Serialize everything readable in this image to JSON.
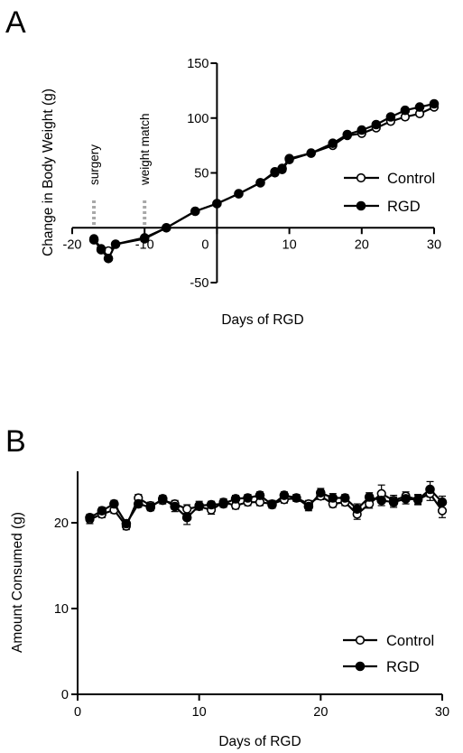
{
  "chart_data": [
    {
      "panel": "A",
      "type": "line",
      "title": "",
      "xlabel": "Days of RGD",
      "ylabel": "Change in Body Weight (g)",
      "xlim": [
        -20,
        30
      ],
      "ylim": [
        -50,
        150
      ],
      "xticks": [
        -20,
        -10,
        0,
        10,
        20,
        30
      ],
      "yticks": [
        -50,
        50,
        100,
        150
      ],
      "xtick_labels": [
        "-20",
        "-10",
        "",
        "10",
        "20",
        "30"
      ],
      "ytick_labels": [
        "-50",
        "50",
        "100",
        "150"
      ],
      "origin_label": "0",
      "annotations": [
        {
          "text": "surgery",
          "x": -17
        },
        {
          "text": "weight match",
          "x": -10
        }
      ],
      "legend": {
        "placement": "right",
        "entries": [
          "Control",
          "RGD"
        ]
      },
      "series": [
        {
          "name": "Control",
          "marker": "open-circle",
          "x": [
            -17,
            -16,
            -15,
            -14,
            -10,
            -7,
            -3,
            0,
            3,
            6,
            8,
            9,
            10,
            13,
            16,
            18,
            20,
            22,
            24,
            26,
            28,
            30
          ],
          "y": [
            -10,
            -19,
            -21,
            -15,
            -9,
            0,
            15,
            22,
            31,
            41,
            50,
            53,
            62,
            68,
            75,
            84,
            86,
            91,
            97,
            101,
            104,
            110
          ]
        },
        {
          "name": "RGD",
          "marker": "filled-circle",
          "x": [
            -17,
            -16,
            -15,
            -14,
            -10,
            -7,
            -3,
            0,
            3,
            6,
            8,
            9,
            10,
            13,
            16,
            18,
            20,
            22,
            24,
            26,
            28,
            30
          ],
          "y": [
            -11,
            -20,
            -28,
            -15,
            -10,
            0,
            15,
            22,
            31,
            41,
            51,
            54,
            63,
            68,
            77,
            85,
            89,
            94,
            101,
            107,
            110,
            113
          ]
        }
      ]
    },
    {
      "panel": "B",
      "type": "line",
      "title": "",
      "xlabel": "Days of RGD",
      "ylabel": "Amount Consumed (g)",
      "xlim": [
        0,
        30
      ],
      "ylim": [
        0,
        26
      ],
      "xticks": [
        0,
        10,
        20,
        30
      ],
      "yticks": [
        0,
        10,
        20
      ],
      "xtick_labels": [
        "0",
        "10",
        "20",
        "30"
      ],
      "ytick_labels": [
        "0",
        "10",
        "20"
      ],
      "legend": {
        "placement": "bottom-right",
        "entries": [
          "Control",
          "RGD"
        ]
      },
      "series": [
        {
          "name": "Control",
          "marker": "open-circle",
          "x": [
            1,
            2,
            3,
            4,
            5,
            6,
            7,
            8,
            9,
            10,
            11,
            12,
            13,
            14,
            15,
            16,
            17,
            18,
            19,
            20,
            21,
            22,
            23,
            24,
            25,
            26,
            27,
            28,
            29,
            30
          ],
          "y": [
            20.4,
            21.0,
            21.5,
            19.6,
            22.9,
            22.0,
            22.6,
            22.2,
            21.6,
            21.9,
            21.5,
            22.4,
            22.0,
            22.4,
            22.4,
            22.2,
            22.7,
            22.9,
            22.2,
            23.1,
            22.2,
            22.4,
            21.0,
            22.2,
            23.4,
            22.6,
            23.1,
            22.7,
            23.4,
            21.4
          ],
          "err": [
            0.5,
            0.4,
            0.4,
            0.4,
            0.4,
            0.4,
            0.4,
            0.4,
            0.5,
            0.4,
            0.5,
            0.4,
            0.4,
            0.4,
            0.4,
            0.4,
            0.4,
            0.4,
            0.4,
            0.4,
            0.4,
            0.4,
            0.6,
            0.5,
            1.0,
            0.6,
            0.5,
            0.6,
            0.8,
            0.8
          ]
        },
        {
          "name": "RGD",
          "marker": "filled-circle",
          "x": [
            1,
            2,
            3,
            4,
            5,
            6,
            7,
            8,
            9,
            10,
            11,
            12,
            13,
            14,
            15,
            16,
            17,
            18,
            19,
            20,
            21,
            22,
            23,
            24,
            25,
            26,
            27,
            28,
            29,
            30
          ],
          "y": [
            20.6,
            21.4,
            22.2,
            19.9,
            22.2,
            21.8,
            22.8,
            21.9,
            20.6,
            22.0,
            22.1,
            22.2,
            22.8,
            22.9,
            23.2,
            22.1,
            23.2,
            22.9,
            21.9,
            23.5,
            22.9,
            22.9,
            21.6,
            23.0,
            22.6,
            22.4,
            22.8,
            22.7,
            23.9,
            22.4
          ],
          "err": [
            0.4,
            0.4,
            0.4,
            0.4,
            0.4,
            0.4,
            0.4,
            0.6,
            0.8,
            0.5,
            0.4,
            0.4,
            0.4,
            0.4,
            0.4,
            0.4,
            0.4,
            0.4,
            0.5,
            0.5,
            0.5,
            0.4,
            0.6,
            0.5,
            0.6,
            0.6,
            0.6,
            0.5,
            0.9,
            0.7
          ]
        }
      ]
    }
  ]
}
